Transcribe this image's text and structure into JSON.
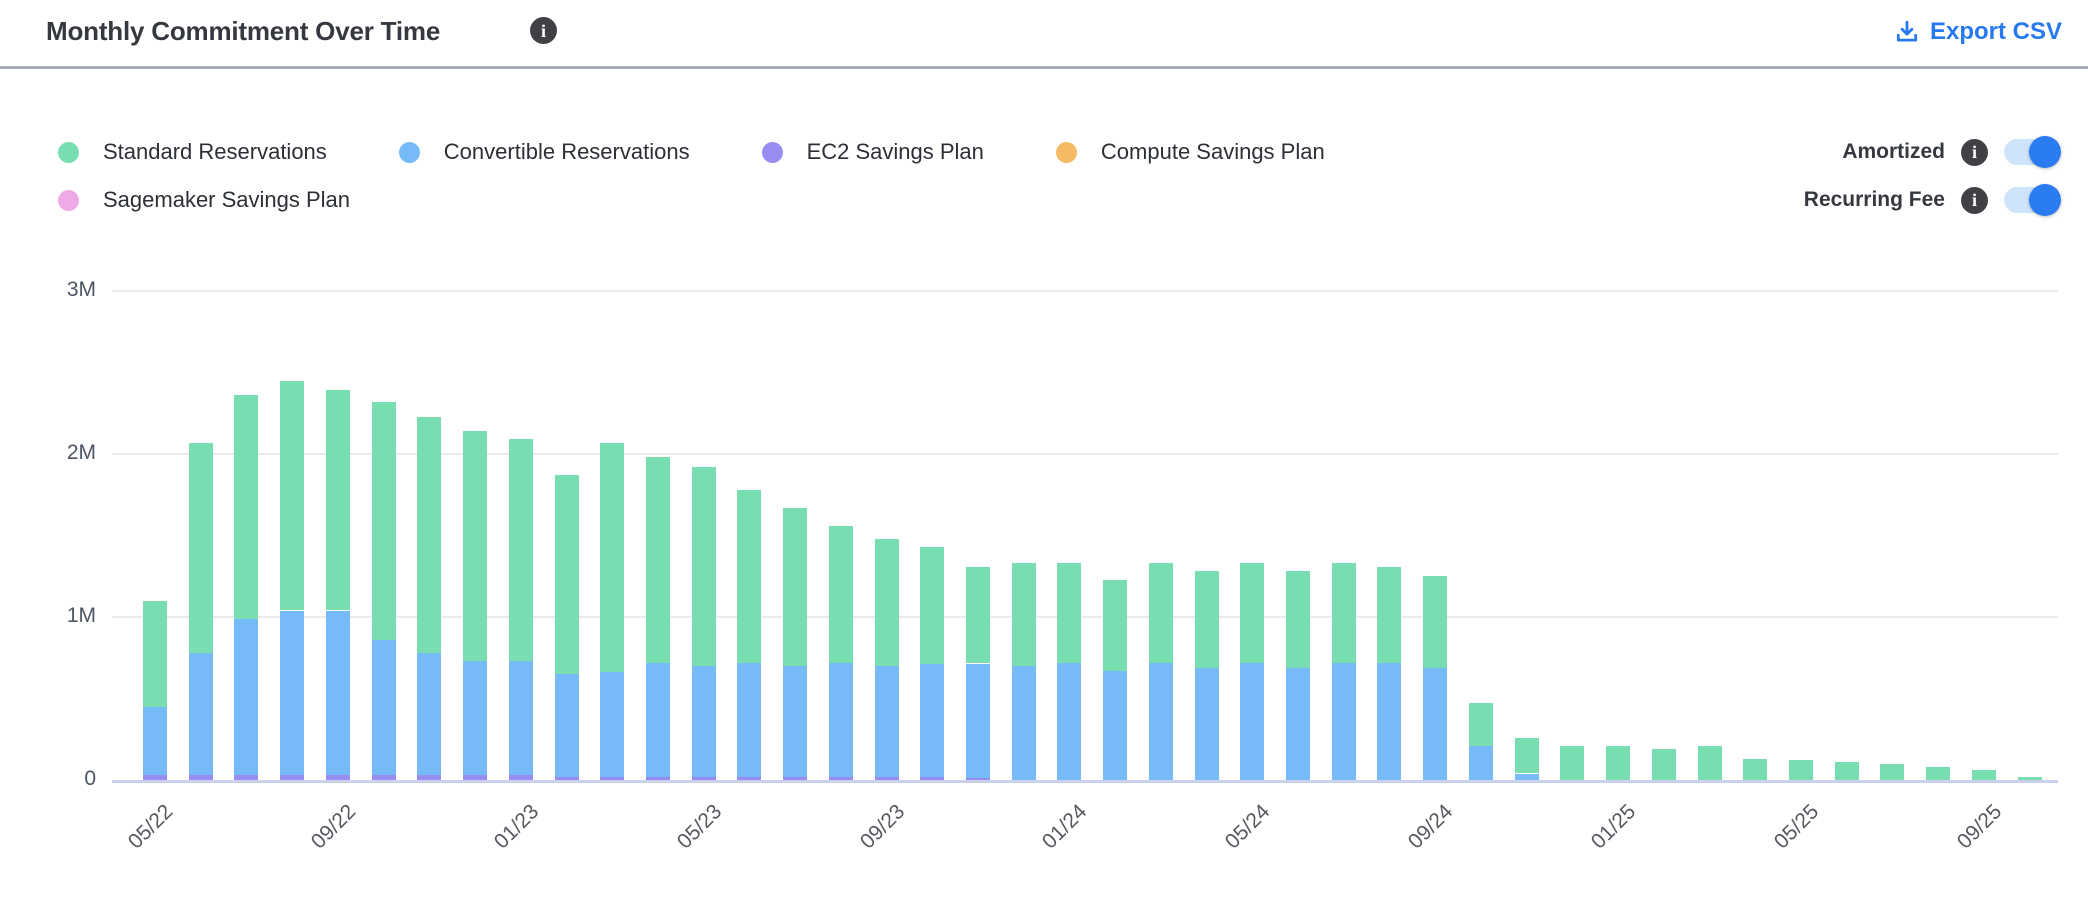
{
  "header": {
    "title": "Monthly Commitment Over Time",
    "title_info_icon": "i",
    "export_label": "Export CSV"
  },
  "legend": {
    "items": [
      {
        "label": "Standard Reservations",
        "color": "#78ddb0"
      },
      {
        "label": "Convertible Reservations",
        "color": "#76bbf8"
      },
      {
        "label": "EC2 Savings Plan",
        "color": "#998cf2"
      },
      {
        "label": "Compute Savings Plan",
        "color": "#f5ba63"
      },
      {
        "label": "Sagemaker Savings Plan",
        "color": "#f0a9e8"
      }
    ]
  },
  "toggles": [
    {
      "label": "Amortized",
      "info_icon": "i",
      "state": "on"
    },
    {
      "label": "Recurring Fee",
      "info_icon": "i",
      "state": "on"
    }
  ],
  "colors": {
    "accent_blue": "#2779f2",
    "toggle_track": "#cfe3fb",
    "toggle_knob": "#2b7cf0",
    "gridline": "#e9eaec",
    "axis_line": "#c9d2ea"
  },
  "chart_data": {
    "type": "bar",
    "stacked": true,
    "title": "Monthly Commitment Over Time",
    "xlabel": "",
    "ylabel": "",
    "units": "millions (M)",
    "ylim": [
      0,
      3
    ],
    "grid": true,
    "legend_position": "top-left",
    "y_ticks": [
      {
        "label": "0",
        "value": 0
      },
      {
        "label": "1M",
        "value": 1
      },
      {
        "label": "2M",
        "value": 2
      },
      {
        "label": "3M",
        "value": 3
      }
    ],
    "x_tick_every": 4,
    "x_tick_labels_shown": [
      "05/22",
      "09/22",
      "01/23",
      "05/23",
      "09/23",
      "01/24",
      "05/24",
      "09/24",
      "01/25",
      "05/25",
      "09/25"
    ],
    "categories": [
      "05/22",
      "06/22",
      "07/22",
      "08/22",
      "09/22",
      "10/22",
      "11/22",
      "12/22",
      "01/23",
      "02/23",
      "03/23",
      "04/23",
      "05/23",
      "06/23",
      "07/23",
      "08/23",
      "09/23",
      "10/23",
      "11/23",
      "12/23",
      "01/24",
      "02/24",
      "03/24",
      "04/24",
      "05/24",
      "06/24",
      "07/24",
      "08/24",
      "09/24",
      "10/24",
      "11/24",
      "12/24",
      "01/25",
      "02/25",
      "03/25",
      "04/25",
      "05/25",
      "06/25",
      "07/25",
      "08/25",
      "09/25",
      "10/25"
    ],
    "series": [
      {
        "name": "EC2 Savings Plan",
        "color": "#998cf2",
        "stack_position": 1,
        "values": [
          0.03,
          0.03,
          0.03,
          0.03,
          0.03,
          0.03,
          0.03,
          0.03,
          0.03,
          0.02,
          0.02,
          0.02,
          0.02,
          0.02,
          0.02,
          0.02,
          0.02,
          0.02,
          0.015,
          0,
          0,
          0,
          0,
          0,
          0,
          0,
          0,
          0,
          0,
          0,
          0,
          0,
          0,
          0,
          0,
          0,
          0,
          0,
          0,
          0,
          0,
          0
        ]
      },
      {
        "name": "Sagemaker Savings Plan",
        "color": "#f0a9e8",
        "stack_position": 2,
        "values": [
          0,
          0,
          0,
          0,
          0,
          0,
          0,
          0,
          0,
          0,
          0,
          0,
          0,
          0,
          0,
          0,
          0,
          0,
          0,
          0,
          0,
          0,
          0,
          0,
          0,
          0,
          0,
          0,
          0,
          0,
          0,
          0,
          0,
          0,
          0,
          0,
          0,
          0,
          0,
          0,
          0,
          0
        ]
      },
      {
        "name": "Compute Savings Plan",
        "color": "#f5ba63",
        "stack_position": 3,
        "values": [
          0,
          0,
          0,
          0,
          0,
          0,
          0,
          0,
          0,
          0,
          0,
          0,
          0,
          0,
          0,
          0,
          0,
          0,
          0,
          0,
          0,
          0,
          0,
          0,
          0,
          0,
          0,
          0,
          0,
          0,
          0,
          0,
          0,
          0,
          0,
          0,
          0,
          0,
          0,
          0,
          0,
          0
        ]
      },
      {
        "name": "Convertible Reservations",
        "color": "#76bbf8",
        "stack_position": 4,
        "values": [
          0.42,
          0.75,
          0.96,
          1.01,
          1.01,
          0.83,
          0.75,
          0.7,
          0.7,
          0.63,
          0.64,
          0.7,
          0.68,
          0.7,
          0.68,
          0.7,
          0.68,
          0.69,
          0.7,
          0.7,
          0.72,
          0.67,
          0.72,
          0.69,
          0.72,
          0.69,
          0.72,
          0.72,
          0.69,
          0.21,
          0.04,
          0,
          0,
          0,
          0,
          0,
          0,
          0,
          0,
          0,
          0,
          0
        ]
      },
      {
        "name": "Standard Reservations",
        "color": "#78ddb0",
        "stack_position": 5,
        "values": [
          0.65,
          1.29,
          1.37,
          1.41,
          1.35,
          1.46,
          1.45,
          1.41,
          1.36,
          1.22,
          1.41,
          1.26,
          1.22,
          1.06,
          0.97,
          0.84,
          0.78,
          0.72,
          0.59,
          0.63,
          0.61,
          0.56,
          0.61,
          0.59,
          0.61,
          0.59,
          0.61,
          0.59,
          0.56,
          0.26,
          0.22,
          0.21,
          0.21,
          0.19,
          0.21,
          0.13,
          0.12,
          0.11,
          0.1,
          0.08,
          0.06,
          0.02
        ]
      }
    ]
  }
}
